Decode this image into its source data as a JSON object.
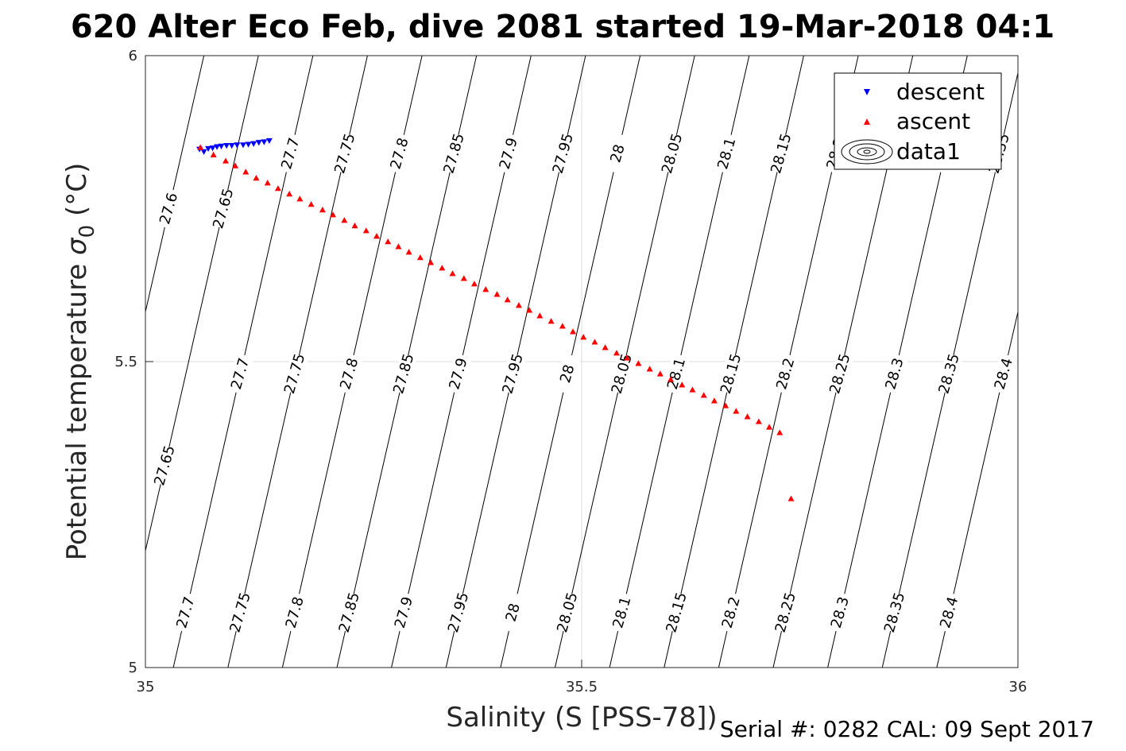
{
  "title": "620 Alter Eco Feb, dive 2081 started 19-Mar-2018 04:1",
  "footer": "Serial #: 0282  CAL: 09 Sept 2017",
  "chart_data": {
    "type": "scatter",
    "xlabel": "Salinity (S [PSS-78])",
    "ylabel_main": "Potential temperature ",
    "ylabel_sigma": "σ",
    "ylabel_sub": "0",
    "ylabel_unit": " (°C)",
    "xlim": [
      35,
      36
    ],
    "ylim": [
      5,
      6
    ],
    "xticks": [
      "35",
      "35.5",
      "36"
    ],
    "yticks": [
      "5",
      "5.5",
      "6"
    ],
    "grid": true,
    "legend": {
      "position": "top-right",
      "entries": [
        "descent",
        "ascent",
        "data1"
      ]
    },
    "colors": {
      "descent": "#0000ff",
      "ascent": "#ff0000",
      "contour": "#000000",
      "grid": "#dcdcdc"
    },
    "series": [
      {
        "name": "descent",
        "marker": "triangle-down",
        "x": [
          35.062,
          35.067,
          35.072,
          35.077,
          35.082,
          35.087,
          35.093,
          35.099,
          35.105,
          35.112,
          35.118,
          35.124,
          35.13,
          35.136,
          35.142
        ],
        "y": [
          5.847,
          5.843,
          5.848,
          5.849,
          5.851,
          5.852,
          5.853,
          5.853,
          5.854,
          5.854,
          5.855,
          5.856,
          5.858,
          5.859,
          5.861
        ]
      },
      {
        "name": "ascent",
        "marker": "triangle-up",
        "x": [
          35.063,
          35.078,
          35.092,
          35.103,
          35.115,
          35.127,
          35.14,
          35.152,
          35.165,
          35.177,
          35.19,
          35.203,
          35.215,
          35.228,
          35.24,
          35.253,
          35.265,
          35.278,
          35.29,
          35.302,
          35.315,
          35.327,
          35.34,
          35.352,
          35.365,
          35.377,
          35.39,
          35.403,
          35.415,
          35.428,
          35.44,
          35.452,
          35.465,
          35.478,
          35.49,
          35.502,
          35.515,
          35.527,
          35.54,
          35.552,
          35.565,
          35.578,
          35.59,
          35.602,
          35.615,
          35.627,
          35.64,
          35.652,
          35.665,
          35.677,
          35.69,
          35.703,
          35.715,
          35.727,
          35.74
        ],
        "y": [
          5.85,
          5.838,
          5.828,
          5.82,
          5.81,
          5.8,
          5.792,
          5.783,
          5.774,
          5.766,
          5.757,
          5.748,
          5.74,
          5.731,
          5.722,
          5.714,
          5.705,
          5.696,
          5.688,
          5.679,
          5.67,
          5.662,
          5.653,
          5.644,
          5.636,
          5.627,
          5.618,
          5.61,
          5.601,
          5.592,
          5.584,
          5.575,
          5.566,
          5.558,
          5.549,
          5.54,
          5.532,
          5.523,
          5.514,
          5.506,
          5.497,
          5.488,
          5.48,
          5.471,
          5.462,
          5.454,
          5.445,
          5.436,
          5.428,
          5.419,
          5.41,
          5.402,
          5.393,
          5.384,
          5.276
        ]
      }
    ],
    "density_contours": {
      "levels": [
        27.6,
        27.65,
        27.7,
        27.75,
        27.8,
        27.85,
        27.9,
        27.95,
        28.0,
        28.05,
        28.1,
        28.15,
        28.2,
        28.25,
        28.3,
        28.35,
        28.4
      ],
      "label_rows": [
        {
          "y": 5.84,
          "labels": [
            "27.7",
            "27.75",
            "27.8",
            "27.85",
            "27.9",
            "27.95",
            "28",
            "28.05",
            "28.1",
            "28.15",
            "28.2",
            "28.3",
            "28.35"
          ]
        },
        {
          "y": 5.75,
          "labels": [
            "27.6",
            "27.65"
          ]
        },
        {
          "y": 5.48,
          "labels": [
            "27.7",
            "27.75",
            "27.8",
            "27.85",
            "27.9",
            "27.95",
            "28",
            "28.05",
            "28.1",
            "28.15",
            "28.2",
            "28.25",
            "28.3",
            "28.35",
            "28.4"
          ]
        },
        {
          "y": 5.33,
          "labels": [
            "27.65"
          ]
        },
        {
          "y": 5.09,
          "labels": [
            "27.7",
            "27.75",
            "27.8",
            "27.85",
            "27.9",
            "27.95",
            "28",
            "28.05",
            "28.1",
            "28.15",
            "28.2",
            "28.25",
            "28.3",
            "28.35",
            "28.4"
          ]
        }
      ]
    }
  }
}
